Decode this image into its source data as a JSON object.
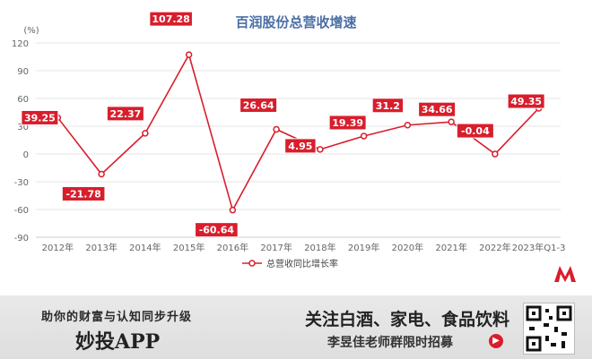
{
  "chart_data": {
    "type": "line",
    "title": "百润股份总营收增速",
    "unit_label": "(%)",
    "categories": [
      "2012年",
      "2013年",
      "2014年",
      "2015年",
      "2016年",
      "2017年",
      "2018年",
      "2019年",
      "2020年",
      "2021年",
      "2022年",
      "2023年Q1-3"
    ],
    "series": [
      {
        "name": "总营收同比增长率",
        "values": [
          39.25,
          -21.78,
          22.37,
          107.28,
          -60.64,
          26.64,
          4.95,
          19.39,
          31.2,
          34.66,
          -0.04,
          49.35
        ]
      }
    ],
    "data_labels": [
      "39.25",
      "-21.78",
      "22.37",
      "107.28",
      "-60.64",
      "26.64",
      "4.95",
      "19.39",
      "31.2",
      "34.66",
      "-0.04",
      "49.35"
    ],
    "ylim": [
      -90,
      120
    ],
    "yticks": [
      120,
      90,
      60,
      30,
      0,
      -30,
      -60,
      -90
    ],
    "grid": true,
    "legend": "bottom",
    "colors": {
      "series": "#d81e2c",
      "label_bg": "#d81e2c",
      "label_text": "#ffffff",
      "grid": "#e6e6e6",
      "axis_text": "#666666"
    }
  },
  "banner": {
    "slogan": "助你的财富与认知同步升级",
    "app_name": "妙投APP",
    "headline": "关注白酒、家电、食品饮料",
    "subline": "李昱佳老师群限时招募",
    "arrow_icon": "arrow-right-circle-icon"
  }
}
